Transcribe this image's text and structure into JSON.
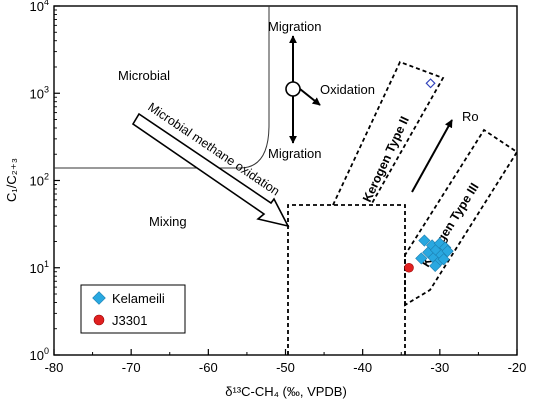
{
  "chart_data": {
    "type": "scatter",
    "xlabel": "δ¹³C-CH₄ (‰, VPDB)",
    "ylabel": "C₁/C₂₊₃",
    "xlim": [
      -80,
      -20
    ],
    "ylim": [
      1,
      10000
    ],
    "log_y": true,
    "x_ticks": [
      "-80",
      "-70",
      "-60",
      "-50",
      "-40",
      "-30",
      "-20"
    ],
    "y_ticks": [
      {
        "base": "10",
        "exp": "0"
      },
      {
        "base": "10",
        "exp": "1"
      },
      {
        "base": "10",
        "exp": "2"
      },
      {
        "base": "10",
        "exp": "3"
      },
      {
        "base": "10",
        "exp": "4"
      }
    ],
    "legend_position": "bottom-left",
    "series": [
      {
        "name": "Kelameili",
        "marker": "diamond",
        "color": "#29a8e0",
        "points": [
          {
            "x": -32.0,
            "y": 20.5
          },
          {
            "x": -31.5,
            "y": 15.0
          },
          {
            "x": -31.0,
            "y": 18.0
          },
          {
            "x": -30.8,
            "y": 13.0
          },
          {
            "x": -30.5,
            "y": 16.0
          },
          {
            "x": -30.2,
            "y": 11.5
          },
          {
            "x": -30.0,
            "y": 19.0
          },
          {
            "x": -29.8,
            "y": 14.0
          },
          {
            "x": -29.5,
            "y": 12.5
          },
          {
            "x": -29.3,
            "y": 17.0
          },
          {
            "x": -29.0,
            "y": 15.5
          },
          {
            "x": -30.6,
            "y": 10.5
          },
          {
            "x": -32.4,
            "y": 12.8
          }
        ]
      },
      {
        "name": "J3301",
        "marker": "circle",
        "color": "#e02020",
        "points": [
          {
            "x": -34.0,
            "y": 10.0
          }
        ]
      },
      {
        "name": "",
        "marker": "diamond-open",
        "color": "#3344bb",
        "points": [
          {
            "x": -31.2,
            "y": 1300
          }
        ]
      }
    ],
    "annotations": {
      "microbial": "Microbial",
      "mixing": "Mixing",
      "migration_up": "Migration",
      "migration_down": "Migration",
      "oxidation": "Oxidation",
      "microbial_methane_oxidation": "Microbial methane oxidation",
      "kerogen_type_ii": "Kerogen Type II",
      "kerogen_type_iii": "Kerogen Type III",
      "ro": "Ro"
    }
  }
}
